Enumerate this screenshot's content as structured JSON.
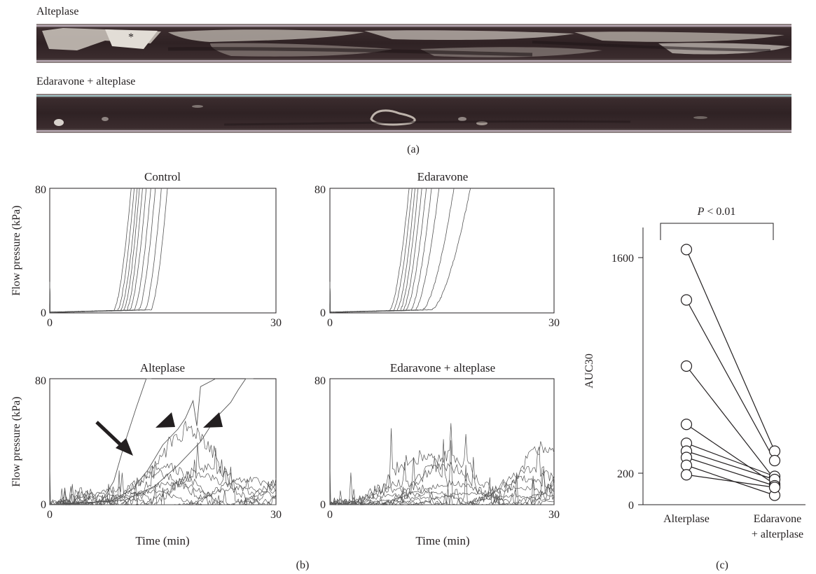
{
  "panel_a": {
    "strip1_label": "Alteplase",
    "strip1_marker": "*",
    "strip2_label": "Edaravone + alteplase",
    "caption": "(a)"
  },
  "panel_b": {
    "caption": "(b)",
    "ylabel": "Flow pressure (kPa)",
    "xlabel": "Time (min)"
  },
  "panel_c": {
    "caption": "(c)"
  },
  "colors": {
    "ink": "#231f20",
    "trace": "#555555",
    "strip_dark": "#3a2a2c",
    "strip_light": "#d8d2cc"
  },
  "chart_data": [
    {
      "id": "control",
      "type": "line",
      "title": "Control",
      "ylabel": "Flow pressure (kPa)",
      "xlabel": "",
      "xlim": [
        0,
        30
      ],
      "ylim": [
        0,
        80
      ],
      "x_ticks": [
        "0",
        "30"
      ],
      "y_ticks": [
        "0",
        "80"
      ],
      "pattern": "occlusion",
      "onset_min": [
        8.5,
        9.0,
        9.4,
        9.8,
        10.2,
        10.6,
        11.2,
        11.8,
        12.6,
        13.4
      ],
      "cross80_min": [
        10.8,
        11.2,
        11.6,
        11.9,
        12.3,
        12.8,
        13.4,
        14.0,
        14.8,
        15.6
      ]
    },
    {
      "id": "edaravone",
      "type": "line",
      "title": "Edaravone",
      "ylabel": "",
      "xlabel": "",
      "xlim": [
        0,
        30
      ],
      "ylim": [
        0,
        80
      ],
      "x_ticks": [
        "0",
        "30"
      ],
      "y_ticks": [
        "0",
        "80"
      ],
      "pattern": "occlusion",
      "onset_min": [
        8.0,
        8.5,
        9.0,
        9.4,
        9.8,
        10.2,
        10.8,
        11.4,
        12.4,
        13.6
      ],
      "cross80_min": [
        10.6,
        11.0,
        11.4,
        11.8,
        12.3,
        12.9,
        13.6,
        14.6,
        16.6,
        18.8
      ]
    },
    {
      "id": "alteplase",
      "type": "line",
      "title": "Alteplase",
      "ylabel": "Flow pressure (kPa)",
      "xlabel": "Time (min)",
      "xlim": [
        0,
        30
      ],
      "ylim": [
        0,
        80
      ],
      "x_ticks": [
        "0",
        "30"
      ],
      "y_ticks": [
        "0",
        "80"
      ],
      "pattern": "mixed",
      "occluding_traces": [
        {
          "x": [
            0,
            5,
            7,
            8.5,
            10,
            11.5,
            12.8,
            13.5
          ],
          "y": [
            0,
            0.5,
            3,
            15,
            40,
            62,
            80,
            80
          ]
        },
        {
          "x": [
            0,
            8,
            11,
            13,
            15,
            17,
            18,
            19,
            19.5,
            20,
            22
          ],
          "y": [
            0,
            2,
            10,
            22,
            38,
            48,
            55,
            66,
            50,
            75,
            80
          ]
        },
        {
          "x": [
            0,
            10,
            14,
            17,
            20,
            22,
            24,
            25,
            26,
            27
          ],
          "y": [
            0,
            3,
            12,
            25,
            40,
            55,
            65,
            73,
            80,
            80
          ]
        }
      ],
      "fluctuating_peaks_kpa": [
        22,
        26,
        20,
        18,
        15,
        12,
        10,
        28,
        52
      ],
      "annotations": [
        "arrow",
        "arrowhead",
        "arrowhead"
      ]
    },
    {
      "id": "edaravone_alteplase",
      "type": "line",
      "title": "Edaravone + alteplase",
      "ylabel": "",
      "xlabel": "Time (min)",
      "xlim": [
        0,
        30
      ],
      "ylim": [
        0,
        80
      ],
      "x_ticks": [
        "0",
        "30"
      ],
      "y_ticks": [
        "0",
        "80"
      ],
      "pattern": "fluctuating",
      "fluctuating_peaks_kpa": [
        42,
        34,
        28,
        24,
        18,
        15,
        12,
        10,
        8,
        6
      ]
    },
    {
      "id": "auc30",
      "type": "scatter",
      "title": "",
      "xlabel": "",
      "ylabel": "AUC30",
      "categories": [
        "Alterplase",
        "Edaravone\n+ alterplase"
      ],
      "ylim": [
        0,
        1800
      ],
      "y_ticks": [
        0,
        200,
        1600
      ],
      "pairs": [
        [
          1620,
          340
        ],
        [
          1300,
          280
        ],
        [
          880,
          160
        ],
        [
          510,
          130
        ],
        [
          390,
          180
        ],
        [
          340,
          160
        ],
        [
          300,
          120
        ],
        [
          250,
          60
        ],
        [
          190,
          110
        ]
      ],
      "significance": "P < 0.01"
    }
  ]
}
